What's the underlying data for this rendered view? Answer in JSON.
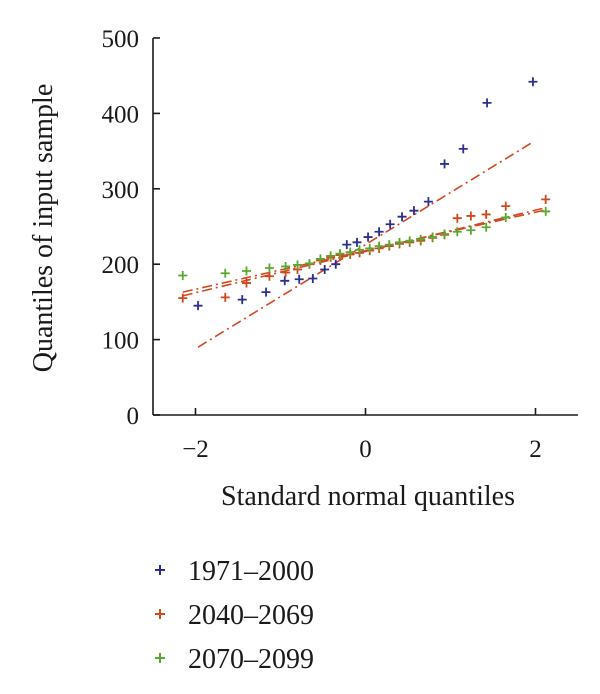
{
  "chart_data": {
    "type": "scatter",
    "xlabel": "Standard normal quantiles",
    "ylabel": "Quantiles of input sample",
    "xlim": [
      -2.5,
      2.5
    ],
    "ylim": [
      0,
      500
    ],
    "x_ticks": [
      -2,
      0,
      2
    ],
    "x_tick_labels": [
      "−2",
      "0",
      "2"
    ],
    "y_ticks": [
      0,
      100,
      200,
      300,
      400,
      500
    ],
    "y_tick_labels": [
      "0",
      "100",
      "200",
      "300",
      "400",
      "500"
    ],
    "grid": false,
    "legend_position": "bottom-left",
    "marker": "+",
    "series": [
      {
        "name": "1971–2000",
        "color": "#2e2e8f",
        "points": [
          [
            -1.97,
            145
          ],
          [
            -1.45,
            153
          ],
          [
            -1.17,
            163
          ],
          [
            -0.95,
            178
          ],
          [
            -0.78,
            180
          ],
          [
            -0.62,
            181
          ],
          [
            -0.48,
            193
          ],
          [
            -0.35,
            200
          ],
          [
            -0.22,
            226
          ],
          [
            -0.1,
            229
          ],
          [
            0.03,
            236
          ],
          [
            0.16,
            243
          ],
          [
            0.29,
            253
          ],
          [
            0.43,
            263
          ],
          [
            0.57,
            271
          ],
          [
            0.74,
            283
          ],
          [
            0.93,
            333
          ],
          [
            1.15,
            353
          ],
          [
            1.43,
            414
          ],
          [
            1.97,
            442
          ]
        ],
        "fit": {
          "x": [
            -1.97,
            1.97
          ],
          "y": [
            90,
            362
          ]
        }
      },
      {
        "name": "2040–2069",
        "color": "#d4461e",
        "points": [
          [
            -2.15,
            155
          ],
          [
            -1.65,
            156
          ],
          [
            -1.4,
            175
          ],
          [
            -1.13,
            184
          ],
          [
            -0.94,
            189
          ],
          [
            -0.8,
            193
          ],
          [
            -0.66,
            200
          ],
          [
            -0.53,
            205
          ],
          [
            -0.41,
            209
          ],
          [
            -0.3,
            212
          ],
          [
            -0.18,
            213
          ],
          [
            -0.07,
            215
          ],
          [
            0.05,
            218
          ],
          [
            0.16,
            221
          ],
          [
            0.28,
            224
          ],
          [
            0.4,
            227
          ],
          [
            0.52,
            229
          ],
          [
            0.65,
            231
          ],
          [
            0.79,
            235
          ],
          [
            0.93,
            239
          ],
          [
            1.08,
            261
          ],
          [
            1.24,
            264
          ],
          [
            1.42,
            266
          ],
          [
            1.65,
            277
          ],
          [
            2.12,
            286
          ]
        ],
        "fit": {
          "x": [
            -2.15,
            2.12
          ],
          "y": [
            158,
            275
          ]
        }
      },
      {
        "name": "2070–2099",
        "color": "#5aa832",
        "points": [
          [
            -2.15,
            185
          ],
          [
            -1.65,
            188
          ],
          [
            -1.4,
            191
          ],
          [
            -1.13,
            195
          ],
          [
            -0.94,
            197
          ],
          [
            -0.8,
            199
          ],
          [
            -0.66,
            201
          ],
          [
            -0.53,
            207
          ],
          [
            -0.41,
            211
          ],
          [
            -0.3,
            214
          ],
          [
            -0.18,
            216
          ],
          [
            -0.07,
            219
          ],
          [
            0.05,
            221
          ],
          [
            0.16,
            224
          ],
          [
            0.28,
            226
          ],
          [
            0.4,
            229
          ],
          [
            0.52,
            231
          ],
          [
            0.65,
            233
          ],
          [
            0.79,
            236
          ],
          [
            0.93,
            240
          ],
          [
            1.08,
            243
          ],
          [
            1.24,
            245
          ],
          [
            1.42,
            249
          ],
          [
            1.65,
            262
          ],
          [
            2.12,
            270
          ]
        ],
        "fit": {
          "x": [
            -2.15,
            2.12
          ],
          "y": [
            163,
            272
          ]
        }
      }
    ]
  }
}
